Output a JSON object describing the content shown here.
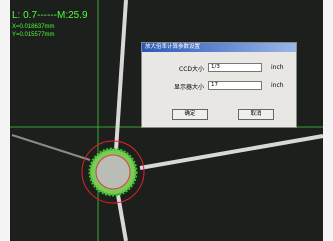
{
  "overlay": {
    "measure": "L: 0.7------M:25.9",
    "x": "X=0.018637mm",
    "y": "Y=0.015577mm"
  },
  "dialog": {
    "title": "放大倍率计算参数设置",
    "fields": [
      {
        "label": "CCD大小",
        "value": "1/3",
        "unit": "inch"
      },
      {
        "label": "显示器大小",
        "value": "17",
        "unit": "inch"
      }
    ],
    "buttons": [
      "确定",
      "取消"
    ]
  }
}
